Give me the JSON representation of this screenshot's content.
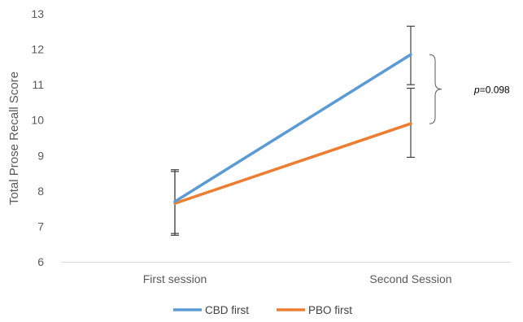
{
  "chart_data": {
    "type": "line",
    "title": "",
    "xlabel": "",
    "ylabel": "Total Prose Recall Score",
    "categories": [
      "First session",
      "Second Session"
    ],
    "ylim": [
      6,
      13
    ],
    "y_ticks": [
      6,
      7,
      8,
      9,
      10,
      11,
      12,
      13
    ],
    "grid": false,
    "legend_position": "bottom",
    "series": [
      {
        "name": "CBD first",
        "color": "#5B9BD5",
        "values": [
          7.7,
          11.85
        ],
        "error_low": [
          6.8,
          11.0
        ],
        "error_high": [
          8.6,
          12.65
        ]
      },
      {
        "name": "PBO first",
        "color": "#ED7D31",
        "values": [
          7.65,
          9.9
        ],
        "error_low": [
          6.75,
          8.95
        ],
        "error_high": [
          8.55,
          10.9
        ]
      }
    ],
    "annotation": {
      "prefix": "p",
      "text": "=0.098",
      "bracket_between": [
        "CBD first",
        "PBO first"
      ],
      "category": "Second Session"
    }
  }
}
